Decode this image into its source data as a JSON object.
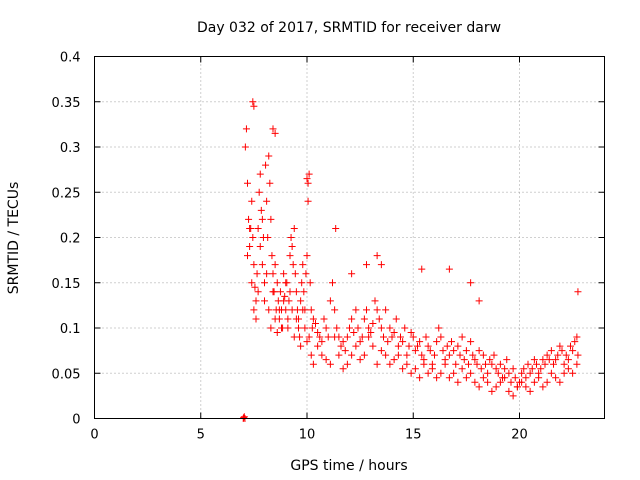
{
  "chart_data": {
    "type": "scatter",
    "title": "Day 032 of 2017, SRMTID for receiver darw",
    "xlabel": "GPS time / hours",
    "ylabel": "SRMTID / TECUs",
    "xlim": [
      0,
      24
    ],
    "ylim": [
      0,
      0.4
    ],
    "x_ticks": [
      "0",
      "5",
      "10",
      "15",
      "20"
    ],
    "y_ticks": [
      "0",
      "0.05",
      "0.1",
      "0.15",
      "0.2",
      "0.25",
      "0.3",
      "0.35",
      "0.4"
    ],
    "grid": true,
    "marker": "plus",
    "color": "#ff0000",
    "series": [
      {
        "x": [
          7.0,
          7.02,
          7.05,
          7.08,
          7.1,
          7.15,
          7.2,
          7.25,
          7.3,
          7.35,
          7.4,
          7.45,
          7.5,
          7.55,
          7.6,
          7.65,
          7.7,
          7.75,
          7.8,
          7.85,
          7.9,
          7.95,
          8.0,
          8.05,
          8.1,
          8.15,
          8.2,
          8.25,
          8.3,
          8.35,
          8.4,
          8.45,
          8.5,
          8.55,
          8.6,
          8.65,
          8.7,
          8.75,
          8.8,
          8.85,
          8.9,
          8.95,
          9.0,
          9.05,
          9.1,
          9.15,
          9.2,
          9.25,
          9.3,
          9.35,
          9.4,
          9.45,
          9.5,
          9.55,
          9.6,
          9.65,
          9.7,
          9.75,
          9.8,
          9.85,
          9.9,
          9.95,
          10.0,
          10.05,
          10.1,
          10.15,
          10.2,
          10.25,
          10.3,
          10.4,
          10.5,
          10.6,
          10.7,
          10.8,
          10.9,
          11.0,
          11.1,
          11.2,
          11.3,
          11.4,
          11.5,
          11.6,
          11.7,
          11.8,
          11.9,
          12.0,
          12.1,
          12.2,
          12.3,
          12.4,
          12.5,
          12.6,
          12.7,
          12.8,
          12.9,
          13.0,
          13.1,
          13.2,
          13.3,
          13.4,
          13.5,
          13.6,
          13.7,
          13.8,
          13.9,
          14.0,
          14.1,
          14.2,
          14.3,
          14.4,
          14.5,
          14.6,
          14.7,
          14.8,
          14.9,
          15.0,
          15.1,
          15.2,
          15.3,
          15.4,
          15.5,
          15.6,
          15.7,
          15.8,
          15.9,
          16.0,
          16.1,
          16.2,
          16.3,
          16.4,
          16.5,
          16.6,
          16.7,
          16.8,
          16.9,
          17.0,
          17.1,
          17.2,
          17.3,
          17.4,
          17.5,
          17.6,
          17.7,
          17.8,
          17.9,
          18.0,
          18.1,
          18.2,
          18.3,
          18.4,
          18.5,
          18.6,
          18.7,
          18.8,
          18.9,
          19.0,
          19.1,
          19.2,
          19.3,
          19.4,
          19.5,
          19.6,
          19.7,
          19.8,
          19.9,
          20.0,
          20.1,
          20.2,
          20.3,
          20.4,
          20.5,
          20.6,
          20.7,
          20.8,
          20.9,
          21.0,
          21.1,
          21.2,
          21.3,
          21.4,
          21.5,
          21.6,
          21.7,
          21.8,
          21.9,
          22.0,
          22.1,
          22.2,
          22.3,
          22.4,
          22.5,
          22.6,
          22.7,
          22.75,
          7.2,
          7.3,
          7.4,
          7.5,
          7.6,
          7.7,
          7.8,
          7.9,
          8.0,
          8.1,
          8.2,
          8.3,
          8.4,
          8.5,
          8.6,
          8.7,
          8.8,
          8.9,
          9.0,
          9.1,
          9.2,
          9.3,
          9.4,
          9.5,
          9.6,
          9.7,
          9.8,
          9.9,
          10.0,
          10.1,
          10.2,
          10.3,
          10.5,
          10.7,
          10.9,
          11.1,
          11.3,
          11.5,
          11.7,
          11.9,
          12.1,
          12.3,
          12.5,
          12.7,
          12.9,
          13.1,
          13.3,
          13.5,
          13.7,
          13.9,
          14.1,
          14.3,
          14.5,
          14.7,
          14.9,
          15.1,
          15.3,
          15.5,
          15.7,
          15.9,
          16.1,
          16.3,
          16.5,
          16.7,
          16.9,
          17.1,
          17.3,
          17.5,
          17.7,
          17.9,
          18.1,
          18.3,
          18.5,
          18.7,
          18.9,
          19.1,
          19.3,
          19.5,
          19.7,
          19.9,
          20.1,
          20.3,
          20.5,
          20.7,
          20.9,
          21.1,
          21.3,
          21.5,
          21.7,
          21.9,
          22.1,
          22.3,
          22.5,
          22.7,
          7.45,
          7.5,
          8.4,
          8.5,
          10.0,
          10.05,
          11.35,
          12.1,
          12.8,
          13.3,
          13.5,
          15.4,
          16.7,
          17.7,
          18.1,
          22.75
        ],
        "y": [
          0.0,
          0.001,
          0.002,
          0.0,
          0.3,
          0.32,
          0.26,
          0.22,
          0.19,
          0.21,
          0.24,
          0.2,
          0.17,
          0.145,
          0.13,
          0.16,
          0.21,
          0.25,
          0.27,
          0.23,
          0.22,
          0.2,
          0.15,
          0.28,
          0.24,
          0.2,
          0.29,
          0.26,
          0.22,
          0.18,
          0.16,
          0.14,
          0.17,
          0.12,
          0.15,
          0.13,
          0.11,
          0.14,
          0.12,
          0.1,
          0.16,
          0.135,
          0.12,
          0.15,
          0.11,
          0.13,
          0.18,
          0.2,
          0.19,
          0.17,
          0.21,
          0.16,
          0.14,
          0.12,
          0.11,
          0.09,
          0.13,
          0.15,
          0.17,
          0.14,
          0.12,
          0.16,
          0.18,
          0.24,
          0.27,
          0.15,
          0.12,
          0.1,
          0.11,
          0.105,
          0.095,
          0.09,
          0.085,
          0.11,
          0.1,
          0.09,
          0.13,
          0.15,
          0.12,
          0.1,
          0.09,
          0.08,
          0.085,
          0.075,
          0.09,
          0.1,
          0.11,
          0.095,
          0.12,
          0.1,
          0.085,
          0.09,
          0.11,
          0.12,
          0.1,
          0.095,
          0.105,
          0.13,
          0.12,
          0.11,
          0.1,
          0.09,
          0.12,
          0.085,
          0.1,
          0.09,
          0.095,
          0.11,
          0.08,
          0.09,
          0.085,
          0.1,
          0.07,
          0.08,
          0.095,
          0.09,
          0.075,
          0.08,
          0.085,
          0.07,
          0.065,
          0.09,
          0.08,
          0.075,
          0.06,
          0.07,
          0.085,
          0.1,
          0.09,
          0.075,
          0.065,
          0.08,
          0.07,
          0.085,
          0.075,
          0.06,
          0.08,
          0.07,
          0.09,
          0.065,
          0.075,
          0.06,
          0.085,
          0.07,
          0.065,
          0.06,
          0.075,
          0.055,
          0.07,
          0.06,
          0.05,
          0.065,
          0.06,
          0.07,
          0.055,
          0.05,
          0.06,
          0.045,
          0.055,
          0.065,
          0.05,
          0.04,
          0.055,
          0.045,
          0.035,
          0.04,
          0.05,
          0.055,
          0.045,
          0.06,
          0.05,
          0.055,
          0.065,
          0.06,
          0.05,
          0.055,
          0.065,
          0.06,
          0.07,
          0.065,
          0.075,
          0.06,
          0.065,
          0.07,
          0.08,
          0.075,
          0.06,
          0.07,
          0.065,
          0.08,
          0.075,
          0.085,
          0.09,
          0.07,
          0.18,
          0.21,
          0.15,
          0.12,
          0.11,
          0.14,
          0.19,
          0.17,
          0.13,
          0.16,
          0.12,
          0.1,
          0.14,
          0.11,
          0.095,
          0.12,
          0.1,
          0.13,
          0.15,
          0.1,
          0.14,
          0.12,
          0.09,
          0.11,
          0.1,
          0.08,
          0.12,
          0.1,
          0.085,
          0.09,
          0.07,
          0.06,
          0.08,
          0.07,
          0.065,
          0.06,
          0.09,
          0.07,
          0.055,
          0.06,
          0.07,
          0.08,
          0.065,
          0.07,
          0.09,
          0.08,
          0.06,
          0.075,
          0.07,
          0.06,
          0.065,
          0.07,
          0.055,
          0.06,
          0.05,
          0.055,
          0.045,
          0.06,
          0.05,
          0.055,
          0.045,
          0.05,
          0.06,
          0.045,
          0.05,
          0.04,
          0.055,
          0.045,
          0.05,
          0.04,
          0.035,
          0.045,
          0.04,
          0.03,
          0.035,
          0.04,
          0.045,
          0.03,
          0.025,
          0.035,
          0.04,
          0.035,
          0.03,
          0.04,
          0.045,
          0.035,
          0.04,
          0.05,
          0.045,
          0.04,
          0.05,
          0.055,
          0.05,
          0.06,
          0.35,
          0.345,
          0.32,
          0.315,
          0.265,
          0.26,
          0.21,
          0.16,
          0.17,
          0.18,
          0.17,
          0.165,
          0.165,
          0.15,
          0.13,
          0.14
        ]
      }
    ]
  }
}
